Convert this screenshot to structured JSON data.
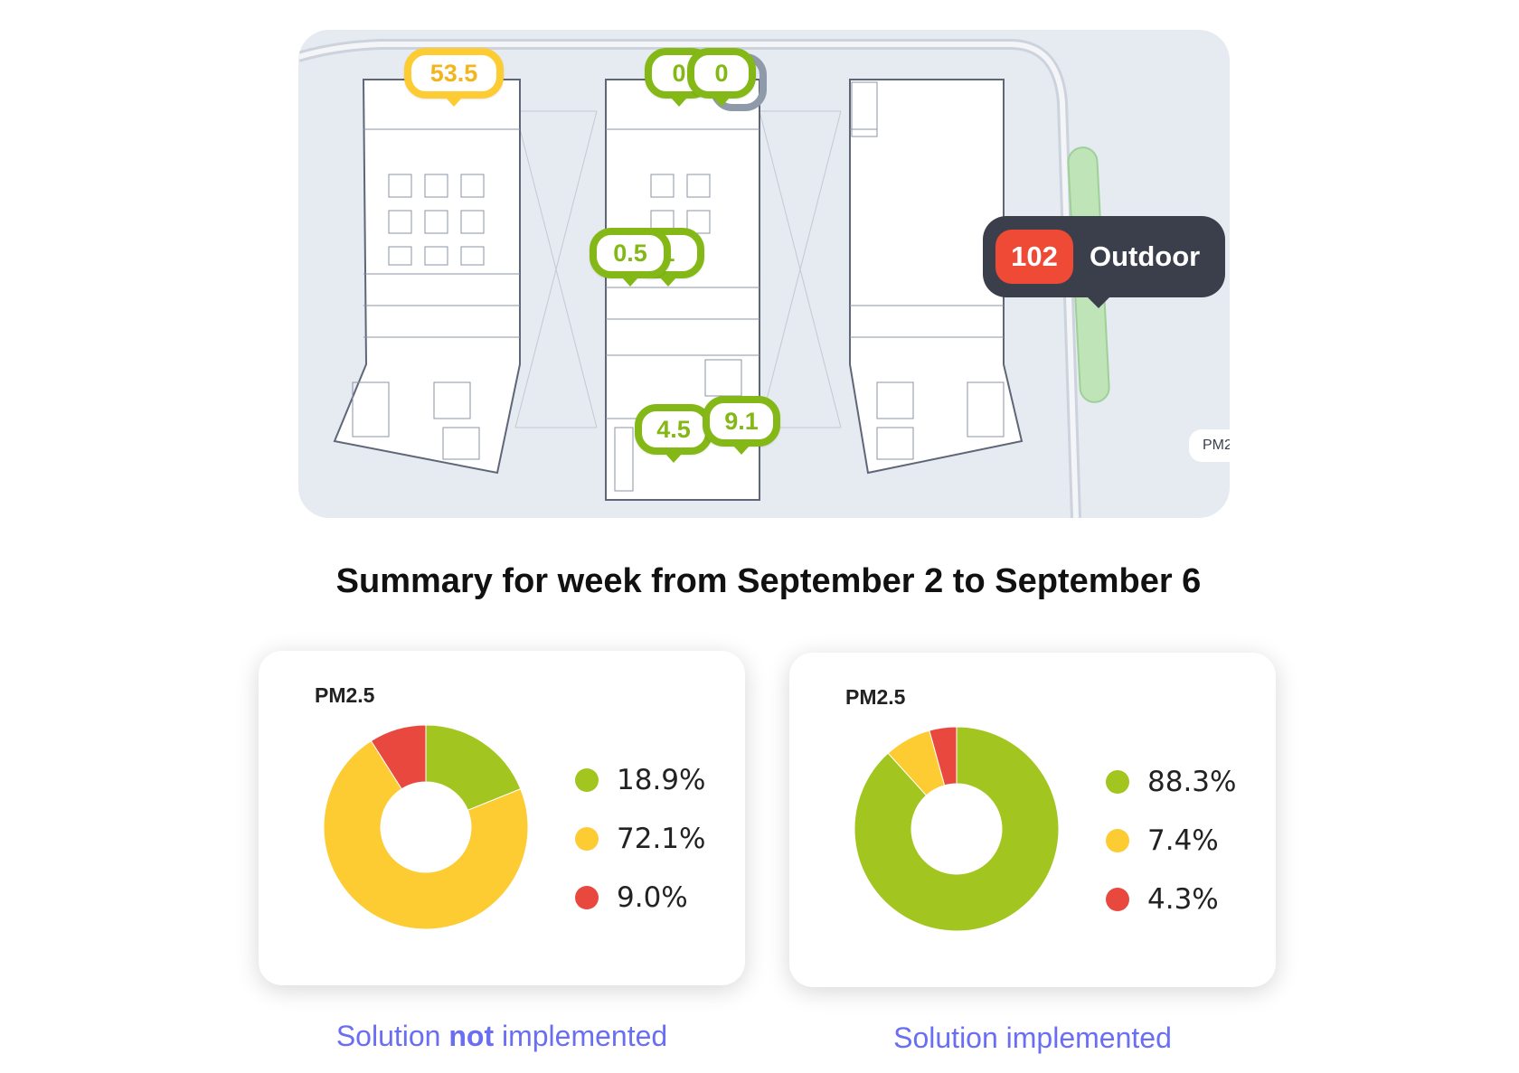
{
  "map": {
    "sensors": [
      {
        "id": "s1",
        "value": "53.5",
        "status": "yellow"
      },
      {
        "id": "s2",
        "value": "0",
        "status": "green"
      },
      {
        "id": "s3",
        "value": "0",
        "status": "green"
      },
      {
        "id": "s4",
        "value": "0.5",
        "status": "green"
      },
      {
        "id": "s5",
        "value": "1",
        "status": "green"
      },
      {
        "id": "s6",
        "value": "4.5",
        "status": "green"
      },
      {
        "id": "s7",
        "value": "9.1",
        "status": "green"
      }
    ],
    "outdoor": {
      "value": "102",
      "label": "Outdoor"
    },
    "pm_tab": "PM2"
  },
  "summary_title": "Summary for week from September 2 to September 6",
  "colors": {
    "green": "#a2c520",
    "yellow": "#fdcb32",
    "red": "#e8483e",
    "accent": "#6a6ef2"
  },
  "chart_data": [
    {
      "type": "pie",
      "title": "PM2.5",
      "categories": [
        "green",
        "yellow",
        "red"
      ],
      "values": [
        18.9,
        72.1,
        9.0
      ],
      "labels": [
        "18.9%",
        "72.1%",
        "9.0%"
      ],
      "donut": true
    },
    {
      "type": "pie",
      "title": "PM2.5",
      "categories": [
        "green",
        "yellow",
        "red"
      ],
      "values": [
        88.3,
        7.4,
        4.3
      ],
      "labels": [
        "88.3%",
        "7.4%",
        "4.3%"
      ],
      "donut": true
    }
  ],
  "captions": {
    "left": {
      "pre": "Solution ",
      "bold": "not",
      "post": " implemented"
    },
    "right": "Solution implemented"
  }
}
